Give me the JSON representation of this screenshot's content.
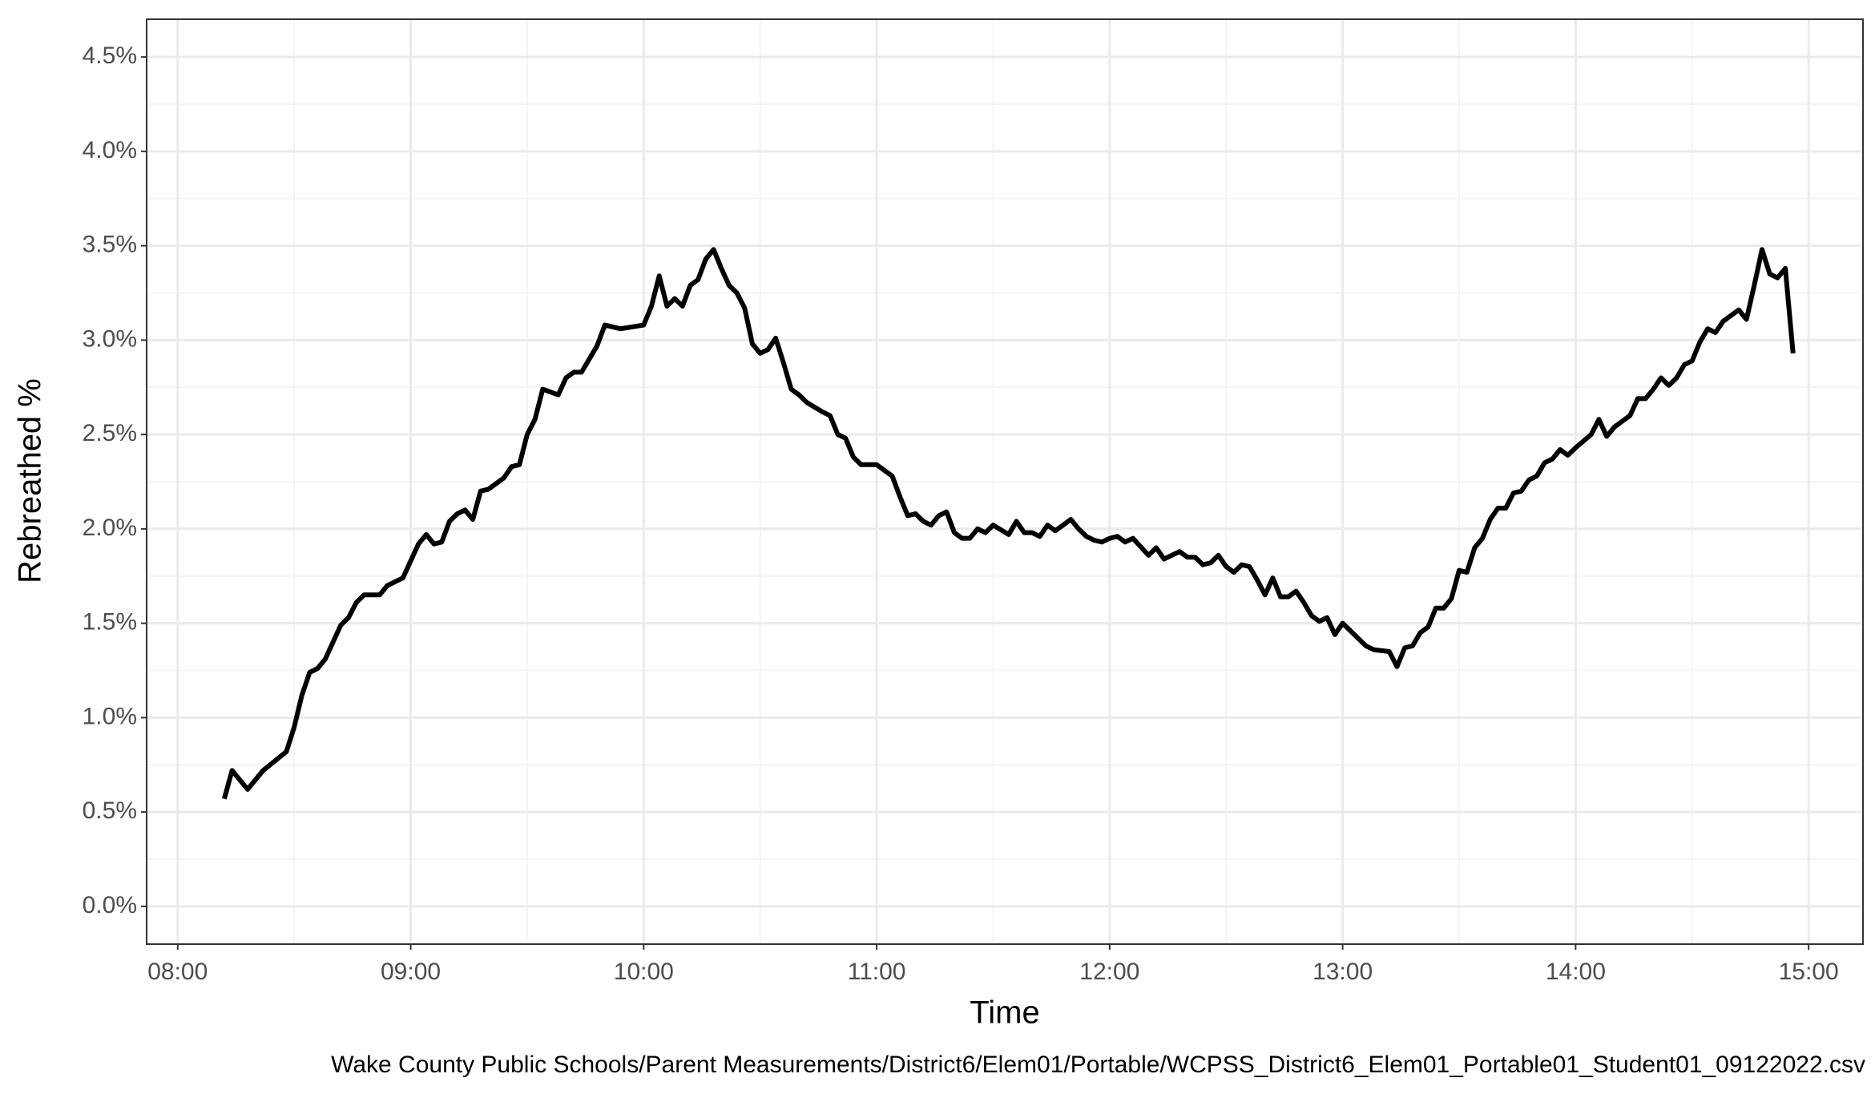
{
  "chart_data": {
    "type": "line",
    "x_label": "Time",
    "y_label": "Rebreathed %",
    "caption": "Wake County Public Schools/Parent Measurements/District6/Elem01/Portable/WCPSS_District6_Elem01_Portable01_Student01_09122022.csv",
    "color": "#000000",
    "grid": true,
    "minor_grid": true,
    "xlim": [
      "07:52",
      "15:14"
    ],
    "xticks": [
      "08:00",
      "09:00",
      "10:00",
      "11:00",
      "12:00",
      "13:00",
      "14:00",
      "15:00"
    ],
    "ylim": [
      -0.2,
      4.7
    ],
    "yticks": [
      {
        "value": 0,
        "label": "0.0%"
      },
      {
        "value": 0.5,
        "label": "0.5%"
      },
      {
        "value": 1,
        "label": "1.0%"
      },
      {
        "value": 1.5,
        "label": "1.5%"
      },
      {
        "value": 2,
        "label": "2.0%"
      },
      {
        "value": 2.5,
        "label": "2.5%"
      },
      {
        "value": 3,
        "label": "3.0%"
      },
      {
        "value": 3.5,
        "label": "3.5%"
      },
      {
        "value": 4,
        "label": "4.0%"
      },
      {
        "value": 4.5,
        "label": "4.5%"
      }
    ],
    "x": [
      "08:12",
      "08:14",
      "08:18",
      "08:22",
      "08:28",
      "08:30",
      "08:32",
      "08:34",
      "08:36",
      "08:38",
      "08:40",
      "08:42",
      "08:44",
      "08:46",
      "08:48",
      "08:52",
      "08:54",
      "08:58",
      "09:00",
      "09:02",
      "09:04",
      "09:06",
      "09:08",
      "09:10",
      "09:12",
      "09:14",
      "09:16",
      "09:18",
      "09:20",
      "09:24",
      "09:26",
      "09:28",
      "09:30",
      "09:32",
      "09:34",
      "09:38",
      "09:40",
      "09:42",
      "09:44",
      "09:46",
      "09:48",
      "09:50",
      "09:54",
      "10:00",
      "10:02",
      "10:04",
      "10:06",
      "10:08",
      "10:10",
      "10:12",
      "10:14",
      "10:16",
      "10:18",
      "10:20",
      "10:22",
      "10:24",
      "10:26",
      "10:28",
      "10:30",
      "10:32",
      "10:34",
      "10:36",
      "10:38",
      "10:40",
      "10:42",
      "10:46",
      "10:48",
      "10:50",
      "10:52",
      "10:54",
      "10:56",
      "11:00",
      "11:04",
      "11:06",
      "11:08",
      "11:10",
      "11:12",
      "11:14",
      "11:16",
      "11:18",
      "11:20",
      "11:22",
      "11:24",
      "11:26",
      "11:28",
      "11:30",
      "11:34",
      "11:36",
      "11:38",
      "11:40",
      "11:42",
      "11:44",
      "11:46",
      "11:48",
      "11:50",
      "11:52",
      "11:54",
      "11:56",
      "11:58",
      "12:00",
      "12:02",
      "12:04",
      "12:06",
      "12:10",
      "12:12",
      "12:14",
      "12:18",
      "12:20",
      "12:22",
      "12:24",
      "12:26",
      "12:28",
      "12:30",
      "12:32",
      "12:34",
      "12:36",
      "12:38",
      "12:40",
      "12:42",
      "12:44",
      "12:46",
      "12:48",
      "12:50",
      "12:52",
      "12:54",
      "12:56",
      "12:58",
      "13:00",
      "13:02",
      "13:04",
      "13:06",
      "13:08",
      "13:12",
      "13:14",
      "13:16",
      "13:18",
      "13:20",
      "13:22",
      "13:24",
      "13:26",
      "13:28",
      "13:30",
      "13:32",
      "13:34",
      "13:36",
      "13:38",
      "13:40",
      "13:42",
      "13:44",
      "13:46",
      "13:48",
      "13:50",
      "13:52",
      "13:54",
      "13:56",
      "13:58",
      "14:00",
      "14:04",
      "14:06",
      "14:08",
      "14:10",
      "14:14",
      "14:16",
      "14:18",
      "14:20",
      "14:22",
      "14:24",
      "14:26",
      "14:28",
      "14:30",
      "14:32",
      "14:34",
      "14:36",
      "14:38",
      "14:40",
      "14:42",
      "14:44",
      "14:46",
      "14:48",
      "14:50",
      "14:52",
      "14:54",
      "14:56"
    ],
    "values": [
      0.57,
      0.72,
      0.62,
      0.72,
      0.82,
      0.95,
      1.12,
      1.24,
      1.26,
      1.31,
      1.4,
      1.49,
      1.53,
      1.61,
      1.65,
      1.65,
      1.7,
      1.74,
      1.83,
      1.92,
      1.97,
      1.92,
      1.93,
      2.04,
      2.08,
      2.1,
      2.05,
      2.2,
      2.21,
      2.27,
      2.33,
      2.34,
      2.5,
      2.58,
      2.74,
      2.71,
      2.8,
      2.83,
      2.83,
      2.9,
      2.97,
      3.08,
      3.06,
      3.08,
      3.18,
      3.34,
      3.18,
      3.22,
      3.18,
      3.29,
      3.32,
      3.43,
      3.48,
      3.38,
      3.29,
      3.25,
      3.17,
      2.98,
      2.93,
      2.95,
      3.01,
      2.88,
      2.74,
      2.71,
      2.67,
      2.62,
      2.6,
      2.5,
      2.48,
      2.38,
      2.34,
      2.34,
      2.28,
      2.17,
      2.07,
      2.08,
      2.04,
      2.02,
      2.07,
      2.09,
      1.98,
      1.95,
      1.95,
      2.0,
      1.98,
      2.02,
      1.97,
      2.04,
      1.98,
      1.98,
      1.96,
      2.02,
      1.99,
      2.02,
      2.05,
      2.0,
      1.96,
      1.94,
      1.93,
      1.95,
      1.96,
      1.93,
      1.95,
      1.86,
      1.9,
      1.84,
      1.88,
      1.85,
      1.85,
      1.81,
      1.82,
      1.86,
      1.8,
      1.77,
      1.81,
      1.8,
      1.73,
      1.65,
      1.74,
      1.64,
      1.64,
      1.67,
      1.61,
      1.54,
      1.51,
      1.53,
      1.44,
      1.5,
      1.46,
      1.42,
      1.38,
      1.36,
      1.35,
      1.27,
      1.37,
      1.38,
      1.45,
      1.48,
      1.58,
      1.58,
      1.63,
      1.78,
      1.77,
      1.9,
      1.95,
      2.05,
      2.11,
      2.11,
      2.19,
      2.2,
      2.26,
      2.28,
      2.35,
      2.37,
      2.42,
      2.39,
      2.43,
      2.5,
      2.58,
      2.49,
      2.54,
      2.6,
      2.69,
      2.69,
      2.74,
      2.8,
      2.76,
      2.8,
      2.87,
      2.89,
      2.99,
      3.06,
      3.04,
      3.1,
      3.13,
      3.16,
      3.11,
      3.29,
      3.48,
      3.35,
      3.33,
      3.38,
      2.93
    ]
  }
}
